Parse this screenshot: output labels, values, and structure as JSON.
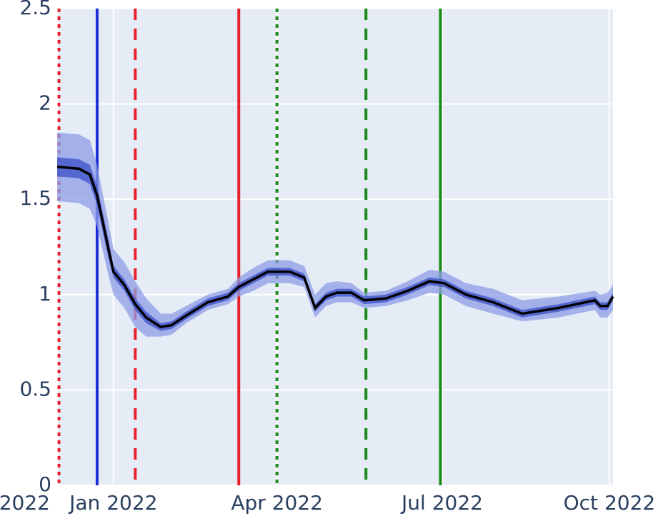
{
  "chart_data": {
    "type": "line",
    "x": [
      "2021-12-01",
      "2021-12-13",
      "2021-12-19",
      "2021-12-23",
      "2021-12-29",
      "2022-01-01",
      "2022-01-07",
      "2022-01-13",
      "2022-01-19",
      "2022-01-27",
      "2022-02-02",
      "2022-02-10",
      "2022-02-22",
      "2022-03-05",
      "2022-03-11",
      "2022-03-19",
      "2022-03-27",
      "2022-04-08",
      "2022-04-16",
      "2022-04-22",
      "2022-04-28",
      "2022-05-04",
      "2022-05-12",
      "2022-05-19",
      "2022-05-31",
      "2022-06-12",
      "2022-06-24",
      "2022-07-02",
      "2022-07-14",
      "2022-07-29",
      "2022-08-14",
      "2022-09-03",
      "2022-09-23",
      "2022-09-26",
      "2022-09-30",
      "2022-10-03"
    ],
    "values": [
      1.67,
      1.66,
      1.63,
      1.52,
      1.25,
      1.12,
      1.05,
      0.95,
      0.88,
      0.83,
      0.84,
      0.89,
      0.96,
      0.99,
      1.04,
      1.08,
      1.12,
      1.12,
      1.09,
      0.93,
      0.99,
      1.01,
      1.01,
      0.97,
      0.98,
      1.02,
      1.07,
      1.06,
      1.0,
      0.96,
      0.9,
      0.93,
      0.97,
      0.94,
      0.94,
      0.99
    ],
    "color": "#000000",
    "bands": [
      {
        "color": "#8c9ce6",
        "lower": [
          1.49,
          1.48,
          1.45,
          1.36,
          1.11,
          1.0,
          0.93,
          0.83,
          0.78,
          0.78,
          0.79,
          0.85,
          0.92,
          0.95,
          0.99,
          1.02,
          1.06,
          1.06,
          1.04,
          0.88,
          0.94,
          0.96,
          0.96,
          0.93,
          0.94,
          0.97,
          1.01,
          1.0,
          0.94,
          0.9,
          0.86,
          0.88,
          0.92,
          0.88,
          0.88,
          0.92
        ],
        "upper": [
          1.85,
          1.84,
          1.81,
          1.68,
          1.39,
          1.24,
          1.17,
          1.07,
          0.98,
          0.9,
          0.9,
          0.94,
          1.0,
          1.03,
          1.09,
          1.14,
          1.18,
          1.18,
          1.15,
          1.0,
          1.06,
          1.07,
          1.06,
          1.01,
          1.02,
          1.07,
          1.13,
          1.12,
          1.06,
          1.03,
          0.97,
          0.99,
          1.02,
          1.0,
          1.01,
          1.05
        ]
      },
      {
        "color": "#3b4fc8",
        "lower": [
          1.62,
          1.61,
          1.58,
          1.47,
          1.2,
          1.09,
          1.02,
          0.92,
          0.85,
          0.81,
          0.82,
          0.87,
          0.94,
          0.97,
          1.02,
          1.06,
          1.1,
          1.1,
          1.07,
          0.91,
          0.97,
          0.99,
          0.99,
          0.95,
          0.96,
          1.0,
          1.05,
          1.04,
          0.98,
          0.94,
          0.88,
          0.91,
          0.95,
          0.92,
          0.92,
          0.97
        ],
        "upper": [
          1.72,
          1.71,
          1.68,
          1.57,
          1.3,
          1.15,
          1.08,
          0.98,
          0.91,
          0.85,
          0.86,
          0.91,
          0.98,
          1.01,
          1.06,
          1.1,
          1.14,
          1.14,
          1.11,
          0.95,
          1.01,
          1.03,
          1.03,
          0.99,
          1.0,
          1.04,
          1.09,
          1.08,
          1.02,
          0.98,
          0.92,
          0.95,
          0.99,
          0.96,
          0.96,
          1.01
        ]
      }
    ],
    "vlines": [
      {
        "x": "2021-12-02",
        "color": "#e8202a",
        "dash": "dot"
      },
      {
        "x": "2021-12-23",
        "color": "#1f2fd6",
        "dash": "solid"
      },
      {
        "x": "2022-01-13",
        "color": "#e8202a",
        "dash": "dash"
      },
      {
        "x": "2022-03-11",
        "color": "#e8202a",
        "dash": "solid"
      },
      {
        "x": "2022-04-01",
        "color": "#1a8a1a",
        "dash": "dot"
      },
      {
        "x": "2022-05-20",
        "color": "#1a8a1a",
        "dash": "dash"
      },
      {
        "x": "2022-06-30",
        "color": "#1a8a1a",
        "dash": "solid"
      }
    ],
    "xlim": [
      "2021-12-01",
      "2022-10-03"
    ],
    "xticks": [
      {
        "value": "2021-12-01",
        "label": "2022"
      },
      {
        "value": "2022-01-01",
        "label": "Jan 2022"
      },
      {
        "value": "2022-04-01",
        "label": "Apr 2022"
      },
      {
        "value": "2022-07-01",
        "label": "Jul 2022"
      },
      {
        "value": "2022-10-01",
        "label": "Oct 2022"
      }
    ],
    "ylim": [
      0,
      2.5
    ],
    "yticks": [
      0,
      0.5,
      1,
      1.5,
      2,
      2.5
    ],
    "grid": true
  }
}
